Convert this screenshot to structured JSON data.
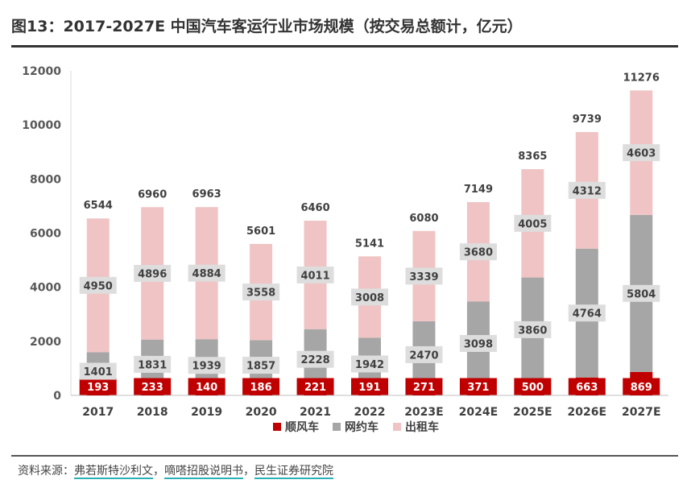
{
  "title": "图13：2017-2027E 中国汽车客运行业市场规模（按交易总额计，亿元）",
  "source": {
    "label": "资料来源：",
    "items": [
      "弗若斯特沙利文",
      "嘀嗒招股说明书",
      "民生证券研究院"
    ],
    "separator": "，"
  },
  "colors": {
    "shunfeng": "#c00000",
    "wangyue": "#a6a6a6",
    "chuzu": "#f0c4c4",
    "label_bg_shunfeng": "#c00000",
    "label_bg_other": "#dddddd"
  },
  "chart_data": {
    "type": "bar",
    "stacked": true,
    "title": "",
    "xlabel": "",
    "ylabel": "",
    "ylim": [
      0,
      12000
    ],
    "yticks": [
      0,
      2000,
      4000,
      6000,
      8000,
      10000,
      12000
    ],
    "grid": false,
    "legend_position": "bottom",
    "categories": [
      "2017",
      "2018",
      "2019",
      "2020",
      "2021",
      "2022",
      "2023E",
      "2024E",
      "2025E",
      "2026E",
      "2027E"
    ],
    "series": [
      {
        "name": "顺风车",
        "color": "#c00000",
        "values": [
          193,
          233,
          140,
          186,
          221,
          191,
          271,
          371,
          500,
          663,
          869
        ]
      },
      {
        "name": "网约车",
        "color": "#a6a6a6",
        "values": [
          1401,
          1831,
          1939,
          1857,
          2228,
          1942,
          2470,
          3098,
          3860,
          4764,
          5804
        ]
      },
      {
        "name": "出租车",
        "color": "#f0c4c4",
        "values": [
          4950,
          4896,
          4884,
          3558,
          4011,
          3008,
          3339,
          3680,
          4005,
          4312,
          4603
        ]
      }
    ],
    "totals": [
      6544,
      6960,
      6963,
      5601,
      6460,
      5141,
      6080,
      7149,
      8365,
      9739,
      11276
    ]
  }
}
